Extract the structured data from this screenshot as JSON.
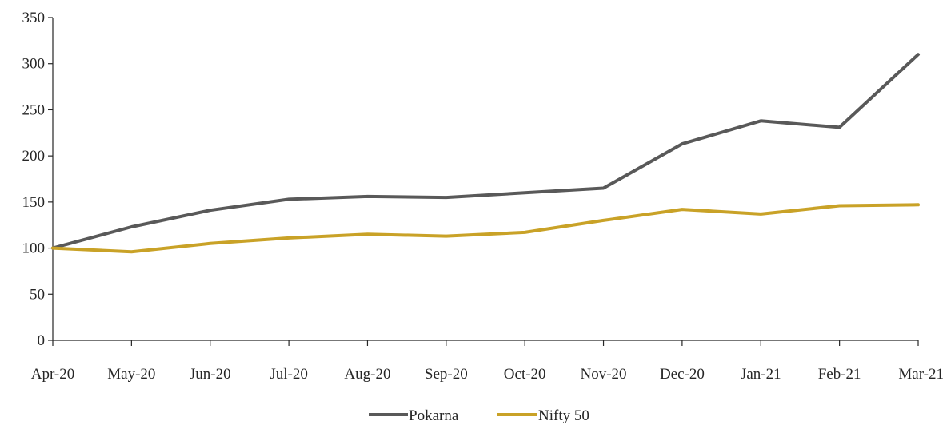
{
  "chart_data": {
    "type": "line",
    "title": "",
    "xlabel": "",
    "ylabel": "",
    "categories": [
      "Apr-20",
      "May-20",
      "Jun-20",
      "Jul-20",
      "Aug-20",
      "Sep-20",
      "Oct-20",
      "Nov-20",
      "Dec-20",
      "Jan-21",
      "Feb-21",
      "Mar-21"
    ],
    "ylim": [
      0,
      350
    ],
    "yticks": [
      "0",
      "50",
      "100",
      "150",
      "200",
      "250",
      "300",
      "350"
    ],
    "grid": false,
    "legend_position": "bottom-center",
    "series": [
      {
        "name": "Pokarna",
        "color": "#595959",
        "values": [
          100,
          123,
          141,
          153,
          156,
          155,
          160,
          165,
          213,
          238,
          231,
          310
        ]
      },
      {
        "name": "Nifty 50",
        "color": "#C9A227",
        "values": [
          100,
          96,
          105,
          111,
          115,
          113,
          117,
          130,
          142,
          137,
          146,
          147
        ]
      }
    ]
  }
}
